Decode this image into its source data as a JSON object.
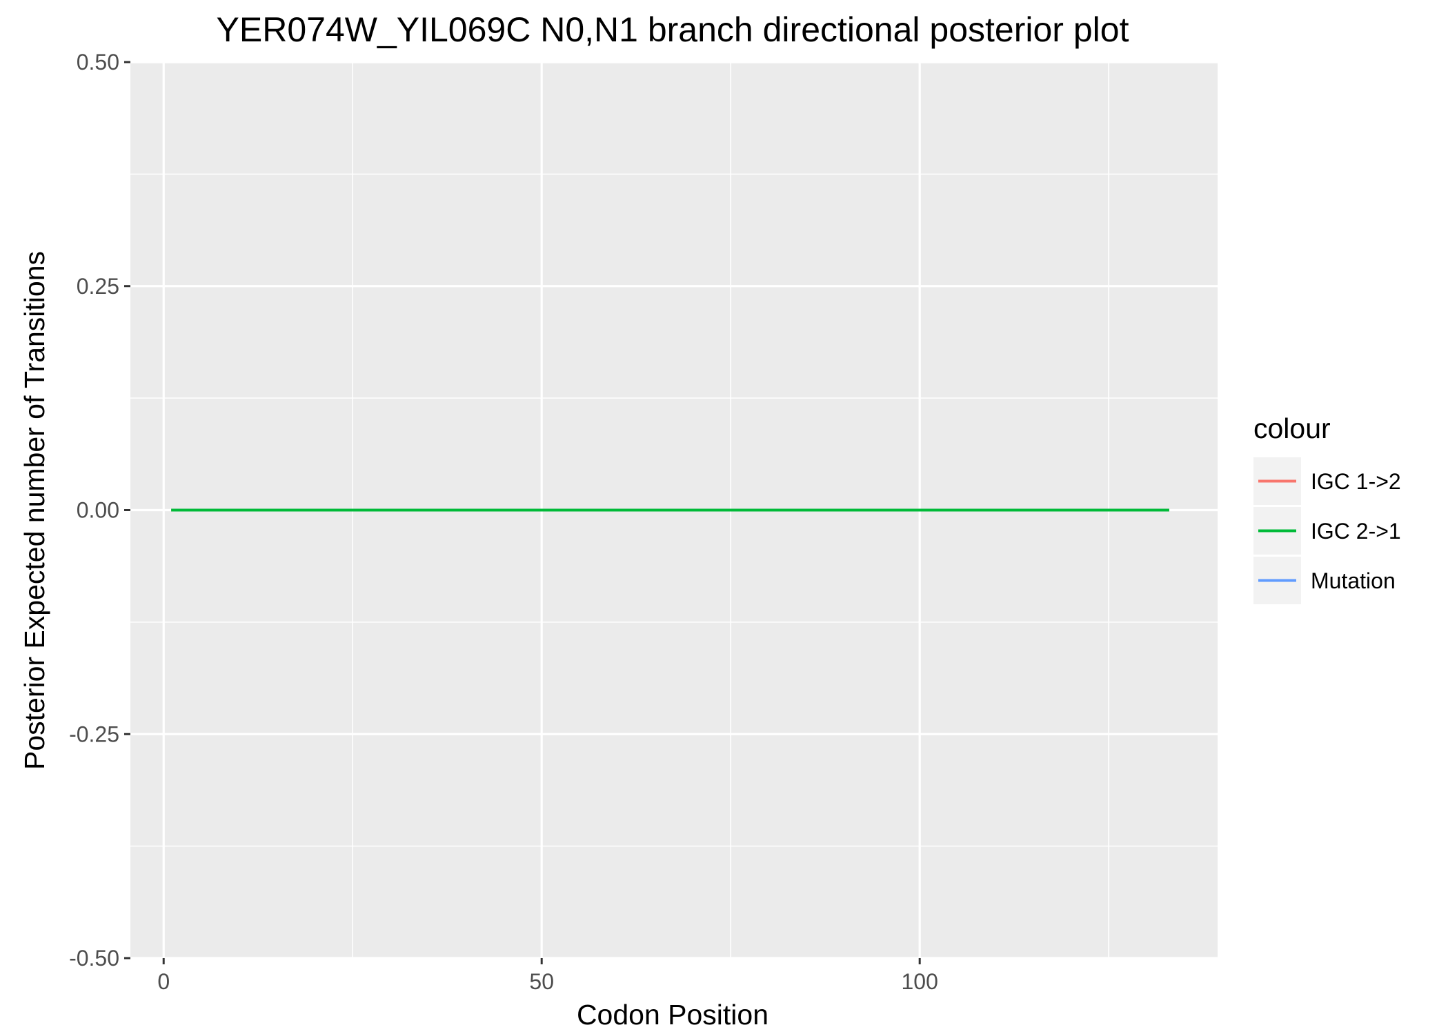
{
  "chart_data": {
    "type": "line",
    "title": "YER074W_YIL069C N0,N1 branch directional posterior plot",
    "xlabel": "Codon Position",
    "ylabel": "Posterior Expected number of Transitions",
    "xlim": [
      -4.4,
      139.4
    ],
    "ylim": [
      -0.5,
      0.5
    ],
    "x_ticks": [
      0,
      50,
      100
    ],
    "x_tick_labels": [
      "0",
      "50",
      "100"
    ],
    "y_ticks": [
      -0.5,
      -0.25,
      0,
      0.25,
      0.5
    ],
    "y_tick_labels": [
      "-0.50",
      "-0.25",
      "0.00",
      "0.25",
      "0.50"
    ],
    "grid": true,
    "legend": {
      "title": "colour",
      "placement": "right"
    },
    "series": [
      {
        "name": "IGC 1->2",
        "color": "#F8766D",
        "x": [
          1,
          133
        ],
        "y": [
          0,
          0
        ]
      },
      {
        "name": "IGC 2->1",
        "color": "#00BA38",
        "x": [
          1,
          133
        ],
        "y": [
          0,
          0
        ]
      },
      {
        "name": "Mutation",
        "color": "#619CFF",
        "x": [
          1,
          133
        ],
        "y": [
          0,
          0
        ]
      }
    ],
    "draw_order": [
      "Mutation",
      "IGC 1->2",
      "IGC 2->1"
    ],
    "panel_background": "#EBEBEB",
    "grid_color": "#FFFFFF"
  }
}
